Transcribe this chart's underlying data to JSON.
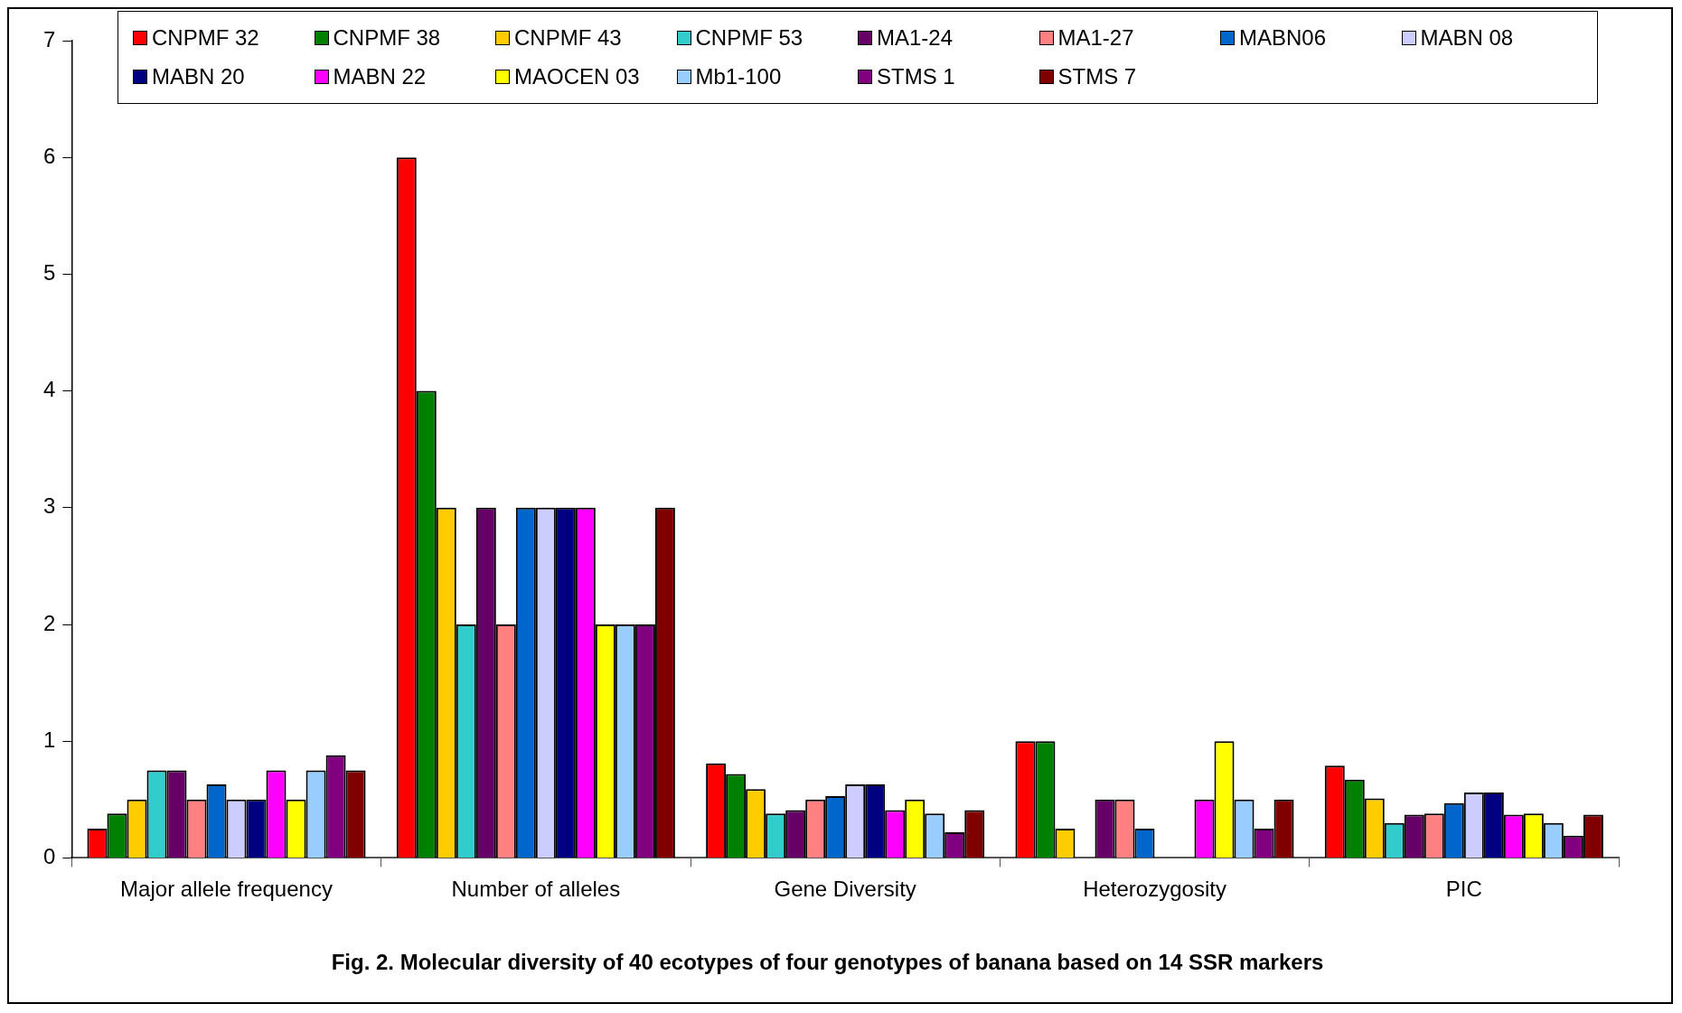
{
  "chart_data": {
    "type": "bar",
    "title": "Fig. 2. Molecular diversity of 40 ecotypes of four genotypes of banana based on 14 SSR markers",
    "categories": [
      "Major allele frequency",
      "Number of alleles",
      "Gene Diversity",
      "Heterozygosity",
      "PIC"
    ],
    "ylim": [
      0,
      7
    ],
    "yticks": [
      0,
      1,
      2,
      3,
      4,
      5,
      6,
      7
    ],
    "legend": "top",
    "series": [
      {
        "name": "CNPMF 32",
        "color": "#ff0000",
        "values": [
          0.25,
          6,
          0.81,
          1,
          0.79
        ]
      },
      {
        "name": "CNPMF 38",
        "color": "#008000",
        "values": [
          0.38,
          4,
          0.72,
          1,
          0.67
        ]
      },
      {
        "name": "CNPMF 43",
        "color": "#ffcc00",
        "values": [
          0.5,
          3,
          0.59,
          0.25,
          0.51
        ]
      },
      {
        "name": "CNPMF 53",
        "color": "#33cccc",
        "values": [
          0.75,
          2,
          0.38,
          0,
          0.3
        ]
      },
      {
        "name": "MA1-24",
        "color": "#660066",
        "values": [
          0.75,
          3,
          0.41,
          0.5,
          0.37
        ]
      },
      {
        "name": "MA1-27",
        "color": "#ff8080",
        "values": [
          0.5,
          2,
          0.5,
          0.5,
          0.38
        ]
      },
      {
        "name": "MABN06",
        "color": "#0066cc",
        "values": [
          0.63,
          3,
          0.53,
          0.25,
          0.47
        ]
      },
      {
        "name": "MABN 08",
        "color": "#ccccff",
        "values": [
          0.5,
          3,
          0.63,
          0,
          0.56
        ]
      },
      {
        "name": "MABN 20",
        "color": "#000080",
        "values": [
          0.5,
          3,
          0.63,
          0,
          0.56
        ]
      },
      {
        "name": "MABN 22",
        "color": "#ff00ff",
        "values": [
          0.75,
          3,
          0.41,
          0.5,
          0.37
        ]
      },
      {
        "name": "MAOCEN 03",
        "color": "#ffff00",
        "values": [
          0.5,
          2,
          0.5,
          1,
          0.38
        ]
      },
      {
        "name": "Mb1-100",
        "color": "#99ccff",
        "values": [
          0.75,
          2,
          0.38,
          0.5,
          0.3
        ]
      },
      {
        "name": "STMS 1",
        "color": "#800080",
        "values": [
          0.88,
          2,
          0.22,
          0.25,
          0.19
        ]
      },
      {
        "name": "STMS 7",
        "color": "#800000",
        "values": [
          0.75,
          3,
          0.41,
          0.5,
          0.37
        ]
      }
    ]
  }
}
